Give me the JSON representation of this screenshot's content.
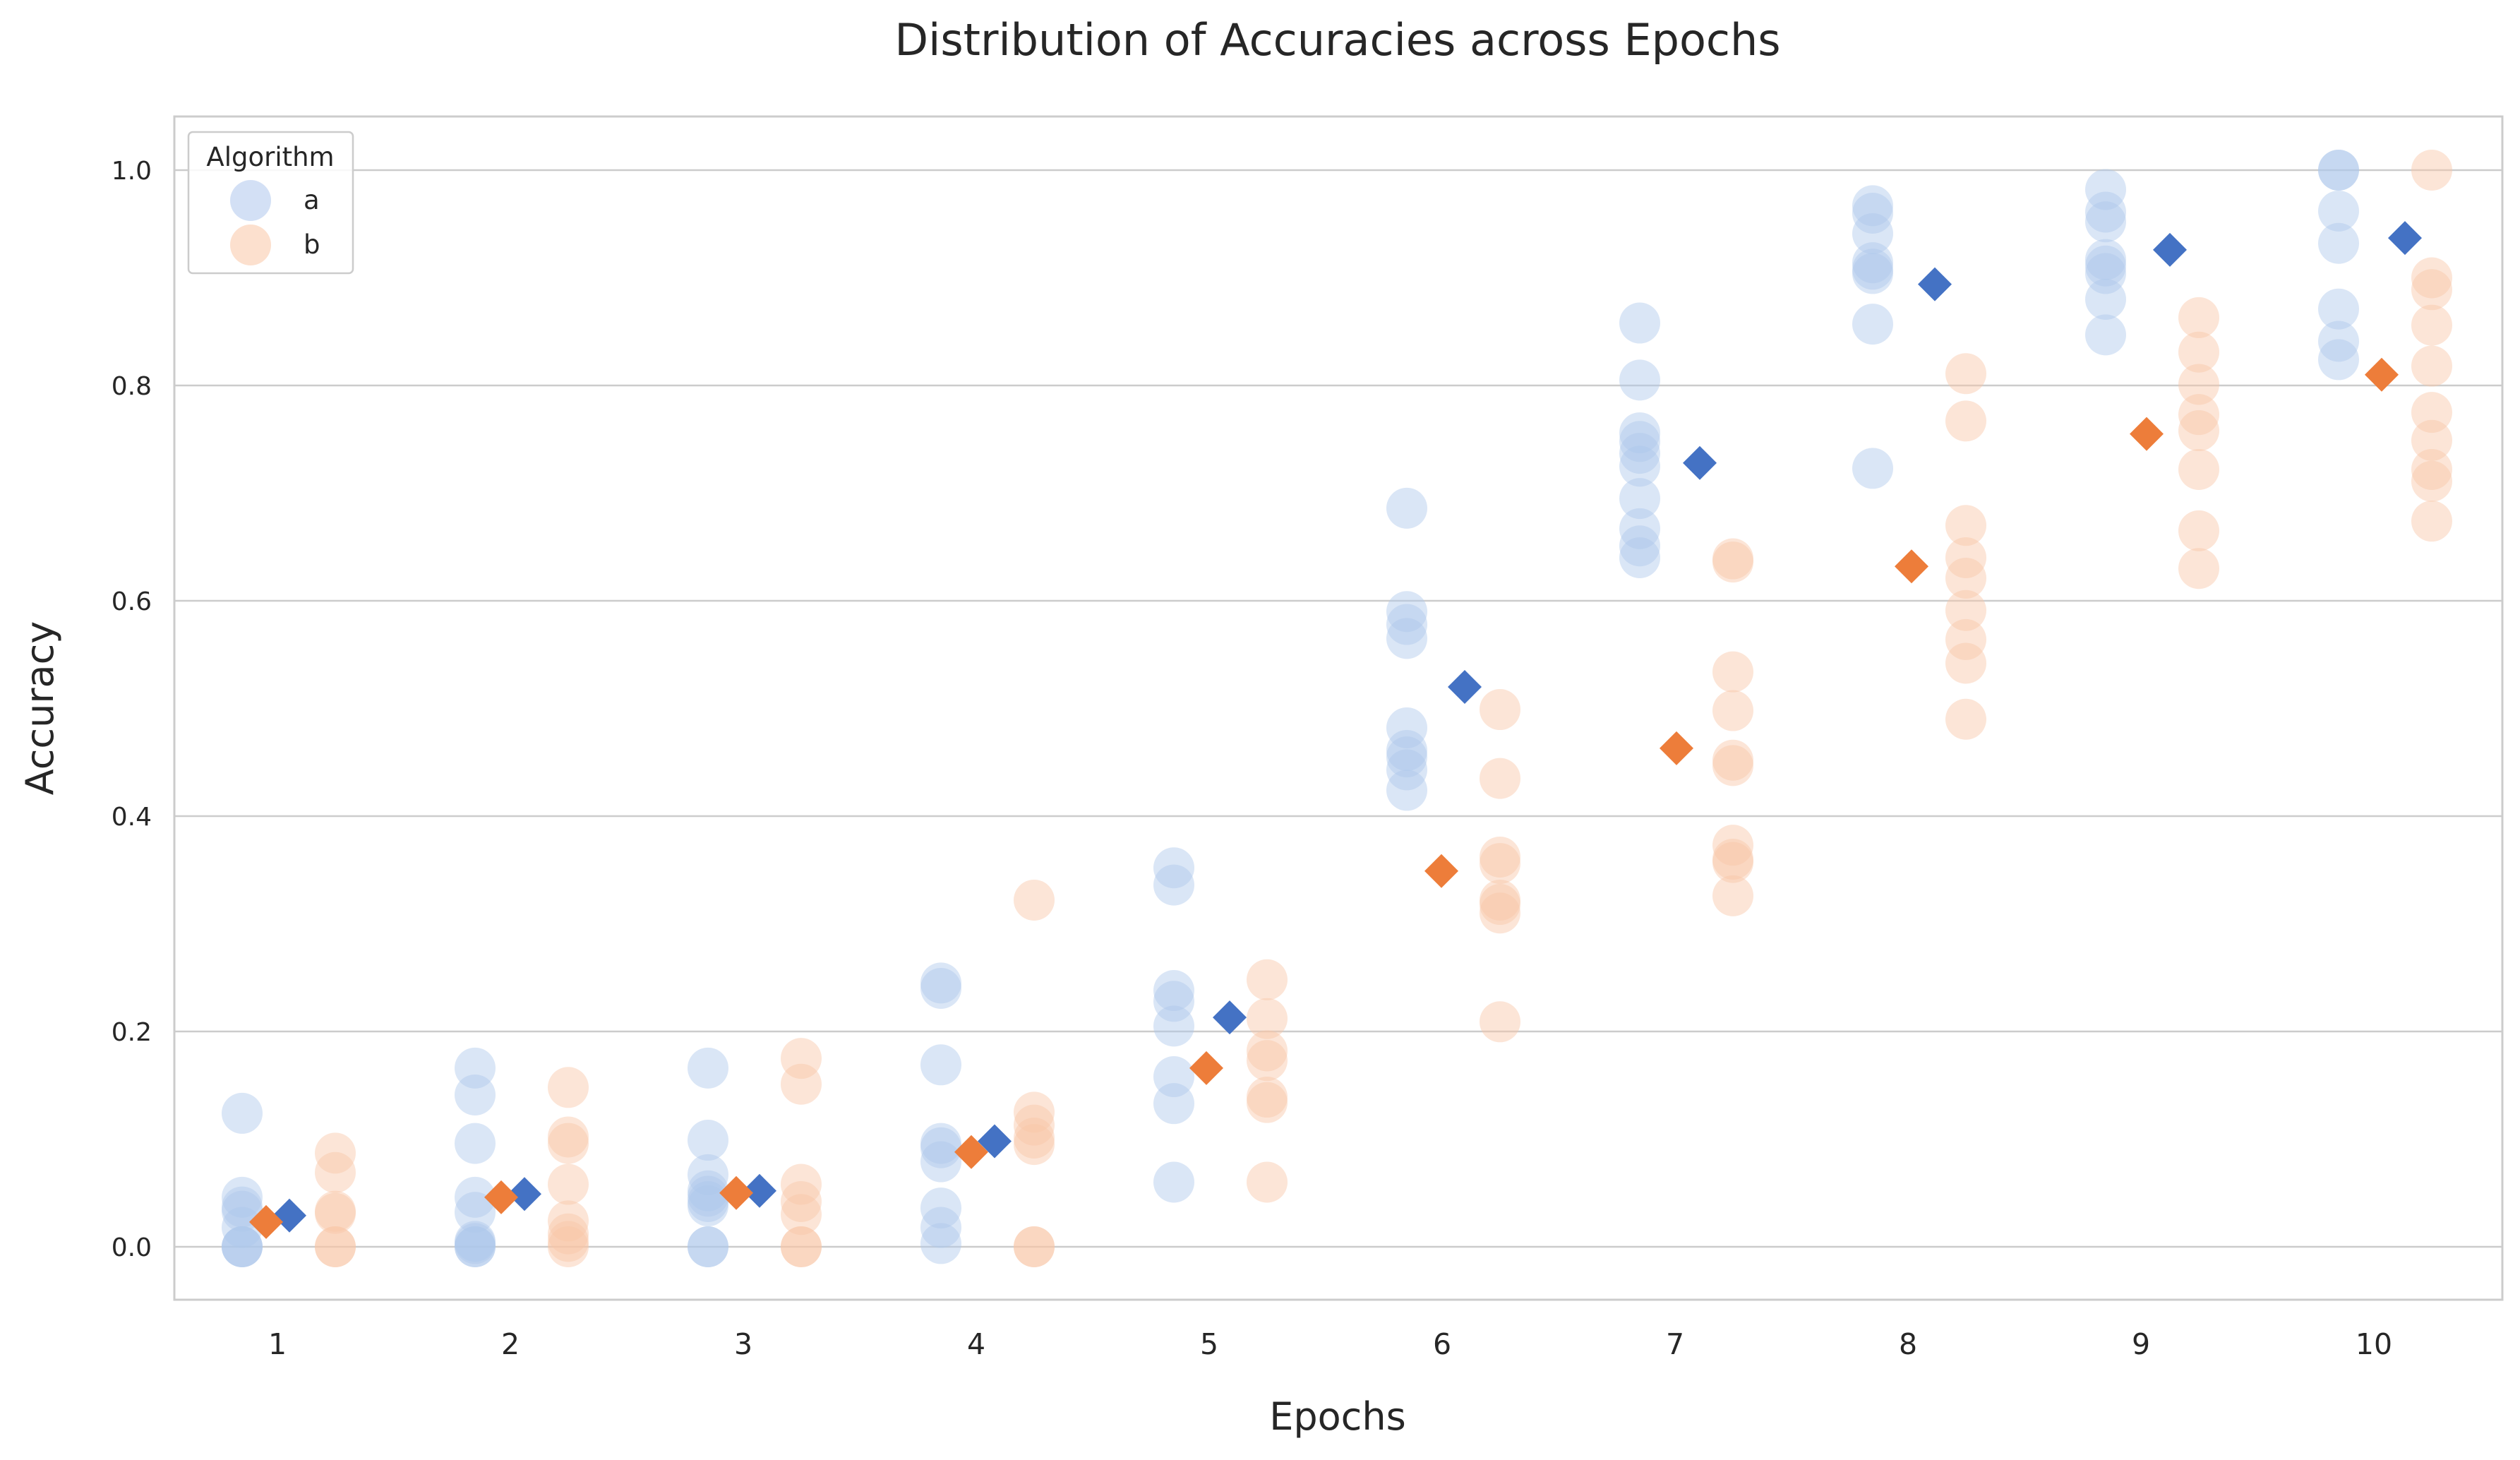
{
  "chart_data": {
    "type": "scatter",
    "title": "Distribution of Accuracies across Epochs",
    "xlabel": "Epochs",
    "ylabel": "Accuracy",
    "categories": [
      "1",
      "2",
      "3",
      "4",
      "5",
      "6",
      "7",
      "8",
      "9",
      "10"
    ],
    "ylim": [
      -0.05,
      1.05
    ],
    "yticks": [
      "0.0",
      "0.2",
      "0.4",
      "0.6",
      "0.8",
      "1.0"
    ],
    "grid": "horizontal",
    "legend": {
      "title": "Algorithm",
      "placement": "top-left",
      "entries": [
        "a",
        "b"
      ]
    },
    "colors": {
      "a_points": "#aec7ec",
      "b_points": "#f9c6a6",
      "a_mean": "#4472c4",
      "b_mean": "#ed7d3a"
    },
    "series": [
      {
        "name": "a",
        "points": [
          [
            0.124,
            0.046,
            0.037,
            0.033,
            0.018,
            0.0,
            0.0,
            0.0
          ],
          [
            0.166,
            0.141,
            0.096,
            0.046,
            0.032,
            0.005,
            0.003,
            0.0,
            0.0
          ],
          [
            0.166,
            0.099,
            0.067,
            0.052,
            0.047,
            0.042,
            0.038,
            0.0,
            0.0
          ],
          [
            0.245,
            0.24,
            0.169,
            0.096,
            0.092,
            0.079,
            0.036,
            0.018,
            0.003
          ],
          [
            0.352,
            0.336,
            0.238,
            0.228,
            0.205,
            0.158,
            0.133,
            0.06
          ],
          [
            0.686,
            0.59,
            0.578,
            0.565,
            0.482,
            0.461,
            0.455,
            0.443,
            0.424
          ],
          [
            0.858,
            0.805,
            0.756,
            0.748,
            0.737,
            0.725,
            0.695,
            0.667,
            0.651,
            0.64
          ],
          [
            0.967,
            0.96,
            0.941,
            0.914,
            0.908,
            0.904,
            0.857,
            0.723
          ],
          [
            0.982,
            0.961,
            0.952,
            0.917,
            0.911,
            0.904,
            0.88,
            0.847
          ],
          [
            1.0,
            1.0,
            0.962,
            0.932,
            0.871,
            0.841,
            0.824
          ]
        ],
        "means": [
          0.029,
          0.049,
          0.052,
          0.098,
          0.213,
          0.52,
          0.728,
          0.894,
          0.926,
          0.937
        ]
      },
      {
        "name": "b",
        "points": [
          [
            0.087,
            0.069,
            0.033,
            0.031,
            0.0,
            0.0
          ],
          [
            0.148,
            0.102,
            0.096,
            0.058,
            0.024,
            0.012,
            0.005,
            0.0
          ],
          [
            0.175,
            0.151,
            0.058,
            0.042,
            0.03,
            0.0,
            0.0
          ],
          [
            0.322,
            0.125,
            0.113,
            0.101,
            0.095,
            0.0,
            0.0
          ],
          [
            0.248,
            0.212,
            0.182,
            0.173,
            0.139,
            0.134,
            0.06
          ],
          [
            0.499,
            0.435,
            0.362,
            0.356,
            0.322,
            0.318,
            0.31,
            0.209
          ],
          [
            0.639,
            0.636,
            0.534,
            0.498,
            0.452,
            0.447,
            0.373,
            0.36,
            0.357,
            0.326
          ],
          [
            0.811,
            0.767,
            0.67,
            0.64,
            0.621,
            0.591,
            0.564,
            0.542,
            0.49
          ],
          [
            0.863,
            0.831,
            0.801,
            0.773,
            0.758,
            0.722,
            0.665,
            0.63
          ],
          [
            1.0,
            0.9,
            0.889,
            0.856,
            0.818,
            0.775,
            0.749,
            0.722,
            0.711,
            0.674
          ]
        ],
        "means": [
          0.023,
          0.046,
          0.05,
          0.088,
          0.166,
          0.349,
          0.463,
          0.632,
          0.755,
          0.81
        ]
      }
    ]
  }
}
